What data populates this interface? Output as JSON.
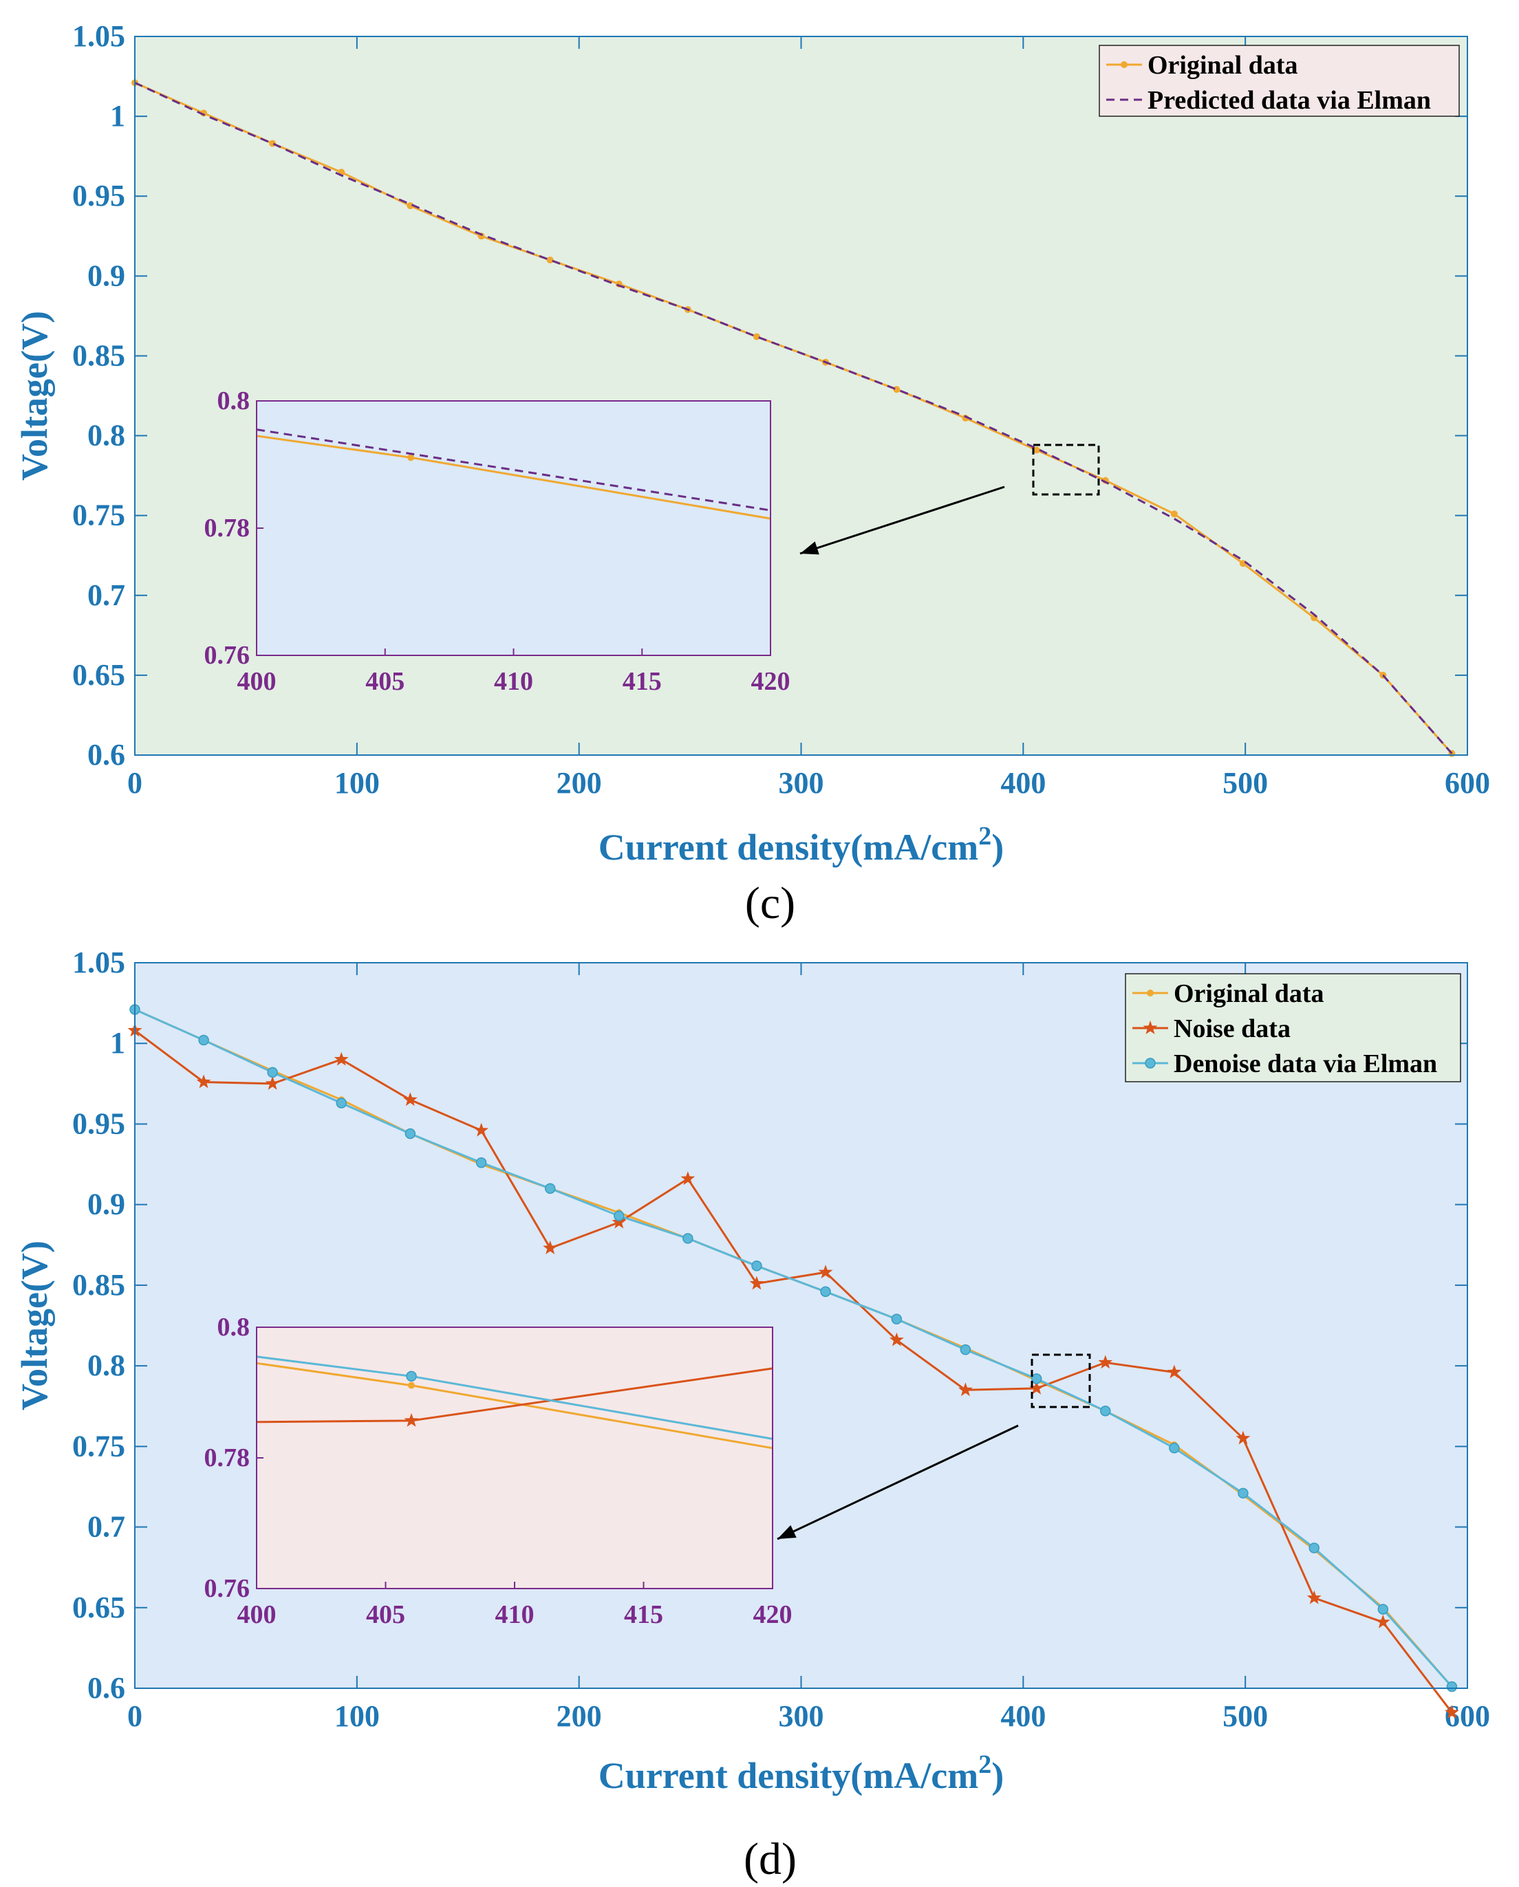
{
  "colors": {
    "axis_blue": "#1f77b4",
    "inset_purple": "#7b2a8c",
    "original": "#f0a830",
    "predicted": "#6a2e86",
    "noise": "#d95319",
    "denoise": "#5bb8d8",
    "bg_c": "#e3efe3",
    "bg_d": "#dce9f8",
    "inset_bg_c": "#dce9f8",
    "inset_bg_d": "#f5e8e8",
    "legend_bg_c": "#f5e8e8",
    "legend_bg_d": "#e3efe3"
  },
  "chart_data": [
    {
      "type": "line",
      "panel_label": "(c)",
      "xlabel": "Current density(mA/cm",
      "xlabel_sup": "2",
      "xlabel_close": ")",
      "ylabel": "Voltage(V)",
      "xlim": [
        0,
        600
      ],
      "ylim": [
        0.6,
        1.05
      ],
      "xticks": [
        0,
        100,
        200,
        300,
        400,
        500,
        600
      ],
      "yticks": [
        0.6,
        0.65,
        0.7,
        0.75,
        0.8,
        0.85,
        0.9,
        0.95,
        1,
        1.05
      ],
      "legend": [
        "Original data",
        "Predicted data via Elman"
      ],
      "series": [
        {
          "name": "Original data",
          "marker": "dot",
          "x": [
            0,
            31,
            62,
            93,
            124,
            156,
            187,
            218,
            249,
            280,
            311,
            343,
            374,
            406,
            437,
            468,
            499,
            531,
            562,
            593
          ],
          "y": [
            1.021,
            1.002,
            0.983,
            0.965,
            0.944,
            0.925,
            0.91,
            0.895,
            0.879,
            0.862,
            0.846,
            0.829,
            0.811,
            0.791,
            0.772,
            0.751,
            0.72,
            0.686,
            0.65,
            0.601
          ]
        },
        {
          "name": "Predicted data via Elman",
          "marker": "none",
          "dashed": true,
          "x": [
            0,
            31,
            62,
            93,
            124,
            156,
            187,
            218,
            249,
            280,
            311,
            343,
            374,
            406,
            437,
            468,
            499,
            531,
            562,
            593
          ],
          "y": [
            1.021,
            1.001,
            0.983,
            0.963,
            0.945,
            0.926,
            0.91,
            0.894,
            0.879,
            0.862,
            0.846,
            0.829,
            0.812,
            0.792,
            0.771,
            0.748,
            0.722,
            0.688,
            0.65,
            0.601
          ]
        }
      ],
      "inset": {
        "xlim": [
          400,
          420
        ],
        "ylim": [
          0.76,
          0.8
        ],
        "xticks": [
          400,
          405,
          410,
          415,
          420
        ],
        "yticks": [
          0.76,
          0.78,
          0.8
        ],
        "ytick_labels": [
          "0.76",
          "0.78",
          "0.8"
        ],
        "series": [
          {
            "name": "Original data",
            "x": [
              400,
              406,
              420
            ],
            "y": [
              0.7945,
              0.7911,
              0.7815
            ],
            "marker": "dot"
          },
          {
            "name": "Predicted data via Elman",
            "x": [
              400,
              420
            ],
            "y": [
              0.7955,
              0.7828
            ],
            "dashed": true
          }
        ]
      }
    },
    {
      "type": "line",
      "panel_label": "(d)",
      "xlabel": "Current density(mA/cm",
      "xlabel_sup": "2",
      "xlabel_close": ")",
      "ylabel": "Voltage(V)",
      "xlim": [
        0,
        600
      ],
      "ylim": [
        0.6,
        1.05
      ],
      "xticks": [
        0,
        100,
        200,
        300,
        400,
        500,
        600
      ],
      "yticks": [
        0.6,
        0.65,
        0.7,
        0.75,
        0.8,
        0.85,
        0.9,
        0.95,
        1,
        1.05
      ],
      "legend": [
        "Original data",
        "Noise data",
        "Denoise data via Elman"
      ],
      "series": [
        {
          "name": "Original data",
          "marker": "dot",
          "x": [
            0,
            31,
            62,
            93,
            124,
            156,
            187,
            218,
            249,
            280,
            311,
            343,
            374,
            406,
            437,
            468,
            499,
            531,
            562,
            593
          ],
          "y": [
            1.021,
            1.002,
            0.983,
            0.965,
            0.944,
            0.925,
            0.91,
            0.895,
            0.879,
            0.862,
            0.846,
            0.829,
            0.811,
            0.791,
            0.772,
            0.751,
            0.72,
            0.686,
            0.65,
            0.601
          ]
        },
        {
          "name": "Noise data",
          "marker": "star",
          "x": [
            0,
            31,
            62,
            93,
            124,
            156,
            187,
            218,
            249,
            280,
            311,
            343,
            374,
            406,
            437,
            468,
            499,
            531,
            562,
            593
          ],
          "y": [
            1.008,
            0.976,
            0.975,
            0.99,
            0.965,
            0.946,
            0.873,
            0.889,
            0.916,
            0.851,
            0.858,
            0.816,
            0.785,
            0.786,
            0.802,
            0.796,
            0.755,
            0.656,
            0.641,
            0.585
          ]
        },
        {
          "name": "Denoise data via Elman",
          "marker": "circle",
          "x": [
            0,
            31,
            62,
            93,
            124,
            156,
            187,
            218,
            249,
            280,
            311,
            343,
            374,
            406,
            437,
            468,
            499,
            531,
            562,
            593
          ],
          "y": [
            1.021,
            1.002,
            0.982,
            0.963,
            0.944,
            0.926,
            0.91,
            0.893,
            0.879,
            0.862,
            0.846,
            0.829,
            0.81,
            0.792,
            0.772,
            0.749,
            0.721,
            0.687,
            0.649,
            0.601
          ]
        }
      ],
      "inset": {
        "xlim": [
          400,
          420
        ],
        "ylim": [
          0.76,
          0.8
        ],
        "xticks": [
          400,
          405,
          410,
          415,
          420
        ],
        "yticks": [
          0.76,
          0.78,
          0.8
        ],
        "ytick_labels": [
          "0.76",
          "0.78",
          "0.8"
        ],
        "series": [
          {
            "name": "Original data",
            "x": [
              400,
              406,
              420
            ],
            "y": [
              0.7945,
              0.7911,
              0.7815
            ],
            "marker": "dot"
          },
          {
            "name": "Noise data",
            "x": [
              400,
              406,
              420
            ],
            "y": [
              0.7855,
              0.7857,
              0.7937
            ],
            "marker": "star"
          },
          {
            "name": "Denoise data via Elman",
            "x": [
              400,
              406,
              420
            ],
            "y": [
              0.7955,
              0.7925,
              0.7829
            ],
            "marker": "circle"
          }
        ]
      }
    }
  ]
}
